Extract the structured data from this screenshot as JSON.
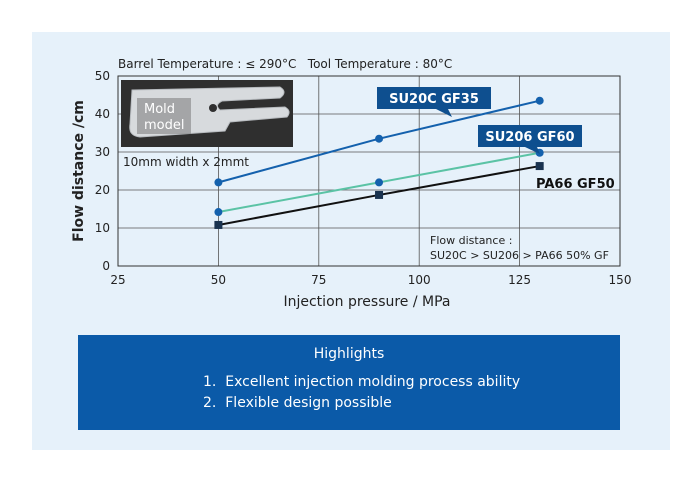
{
  "chart_data": {
    "type": "line",
    "conditions": "Barrel Temperature : ≤ 290°C   Tool Temperature : 80°C",
    "xlabel": "Injection pressure / MPa",
    "ylabel": "Flow distance /cm",
    "xlim": [
      25,
      150
    ],
    "ylim": [
      0,
      50
    ],
    "xticks": [
      25,
      50,
      75,
      100,
      125,
      150
    ],
    "yticks": [
      0,
      10,
      20,
      30,
      40,
      50
    ],
    "grid": true,
    "x": [
      50,
      90,
      130
    ],
    "series": [
      {
        "name": "SU20C GF35",
        "values": [
          22,
          33.5,
          43.5
        ],
        "color": "#1461ad",
        "marker": "circle",
        "label_style": "box"
      },
      {
        "name": "SU206 GF60",
        "values": [
          14.2,
          22,
          29.8
        ],
        "color": "#5bc3a5",
        "marker": "circle",
        "label_style": "box"
      },
      {
        "name": "PA66 GF50",
        "values": [
          10.8,
          18.7,
          26.3
        ],
        "color": "#111111",
        "marker": "square",
        "label_style": "text"
      }
    ],
    "inset": {
      "photo_label": "Mold\nmodel",
      "caption": "10mm width x 2mmt"
    },
    "note": {
      "title": "Flow distance :",
      "text": "SU20C > SU206 > PA66 50% GF"
    }
  },
  "highlights": {
    "title": "Highlights",
    "items": [
      "1.  Excellent injection molding process ability",
      "2.  Flexible design possible"
    ]
  }
}
